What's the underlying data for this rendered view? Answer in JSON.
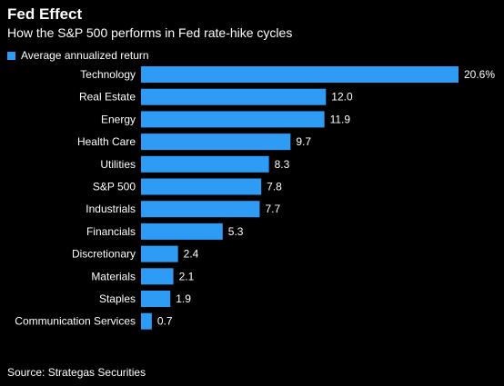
{
  "chart_data": {
    "type": "bar",
    "orientation": "horizontal",
    "title": "Fed Effect",
    "subtitle": "How the S&P 500 performs in Fed rate-hike cycles",
    "categories": [
      "Technology",
      "Real Estate",
      "Energy",
      "Health Care",
      "Utilities",
      "S&P 500",
      "Industrials",
      "Financials",
      "Discretionary",
      "Materials",
      "Staples",
      "Communication Services"
    ],
    "series": [
      {
        "name": "Average annualized return",
        "values": [
          20.6,
          12.0,
          11.9,
          9.7,
          8.3,
          7.8,
          7.7,
          5.3,
          2.4,
          2.1,
          1.9,
          0.7
        ],
        "labels": [
          "20.6%",
          "12.0",
          "11.9",
          "9.7",
          "8.3",
          "7.8",
          "7.7",
          "5.3",
          "2.4",
          "2.1",
          "1.9",
          "0.7"
        ]
      }
    ],
    "legend": "top-left",
    "grid": false,
    "xlim": [
      0,
      20.6
    ],
    "colors": {
      "bar": "#2e9bf5",
      "background": "#000000",
      "text": "#ffffff"
    }
  },
  "source": "Source: Strategas Securities"
}
